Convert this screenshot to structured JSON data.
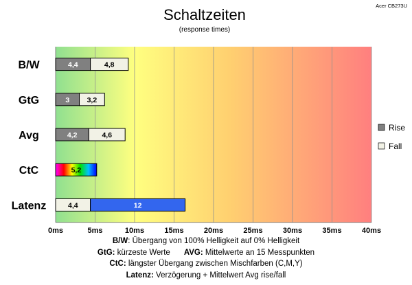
{
  "chart_data": {
    "type": "bar",
    "orientation": "horizontal",
    "stacked": true,
    "title": "Schaltzeiten",
    "subtitle": "(response times)",
    "corner_label": "Acer CB273U",
    "categories": [
      "B/W",
      "GtG",
      "Avg",
      "CtC",
      "Latenz"
    ],
    "series": [
      {
        "name": "Rise",
        "color": "#808080",
        "values": [
          4.4,
          3,
          4.2,
          null,
          null
        ],
        "labels": [
          "4,4",
          "3",
          "4,2",
          "",
          ""
        ]
      },
      {
        "name": "Fall",
        "color": "#f2f2e6",
        "values": [
          4.8,
          3.2,
          4.6,
          null,
          4.4
        ],
        "labels": [
          "4,8",
          "3,2",
          "4,6",
          "",
          "4,4"
        ]
      },
      {
        "name": "",
        "color": "rainbow",
        "values": [
          null,
          null,
          null,
          5.2,
          null
        ],
        "labels": [
          "",
          "",
          "",
          "5,2",
          ""
        ]
      },
      {
        "name": "",
        "color": "#3366ee",
        "values": [
          null,
          null,
          null,
          null,
          12
        ],
        "labels": [
          "",
          "",
          "",
          "",
          "12"
        ]
      }
    ],
    "xlim": [
      0,
      40
    ],
    "xticks": [
      0,
      5,
      10,
      15,
      20,
      25,
      30,
      35,
      40
    ],
    "xtick_labels": [
      "0ms",
      "5ms",
      "10ms",
      "15ms",
      "20ms",
      "25ms",
      "30ms",
      "35ms",
      "40ms"
    ],
    "grid": true,
    "legend_position": "right",
    "legend": [
      "Rise",
      "Fall"
    ],
    "background": "gradient green-yellow-orange-red"
  },
  "footnotes": {
    "bw_key": "B/W",
    "bw_text": ":  Übergang von 100% Helligkeit auf 0% Helligkeit",
    "gtg_key": "GtG:",
    "gtg_text": " kürzeste  Werte",
    "avg_key": "AVG:",
    "avg_text": " Mittelwerte  an 15 Messpunkten",
    "ctc_key": "CtC:",
    "ctc_text": " längster Übergang  zwischen Mischfarben  (C,M,Y)",
    "lat_key": "Latenz:",
    "lat_text": " Verzögerung  + Mittelwert Avg rise/fall"
  }
}
